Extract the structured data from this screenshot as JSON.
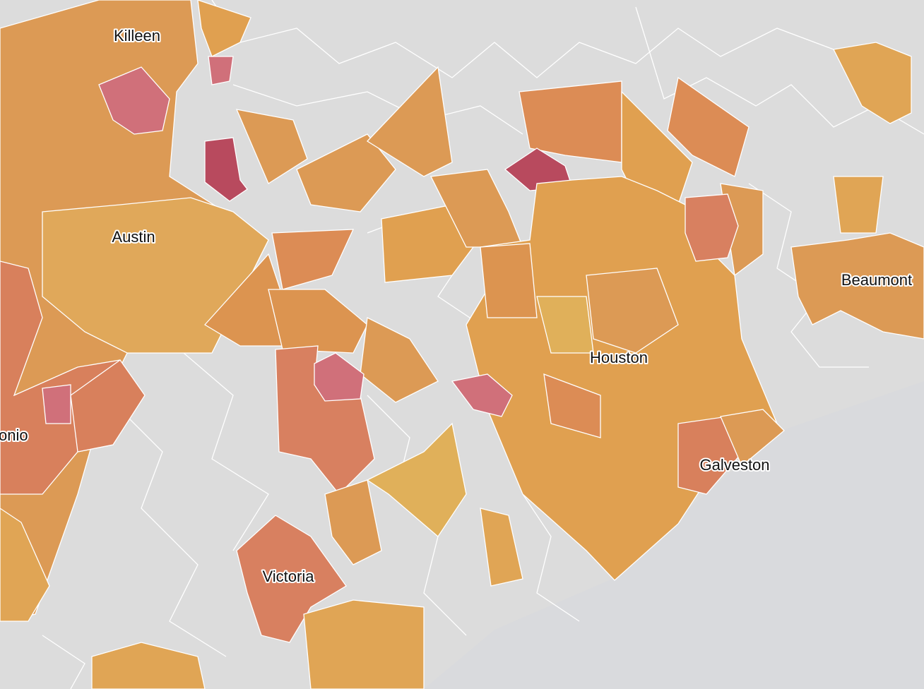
{
  "labels": [
    "Killeen",
    "Austin",
    "onio",
    "Houston",
    "Beaumont",
    "Galveston",
    "Victoria"
  ]
}
